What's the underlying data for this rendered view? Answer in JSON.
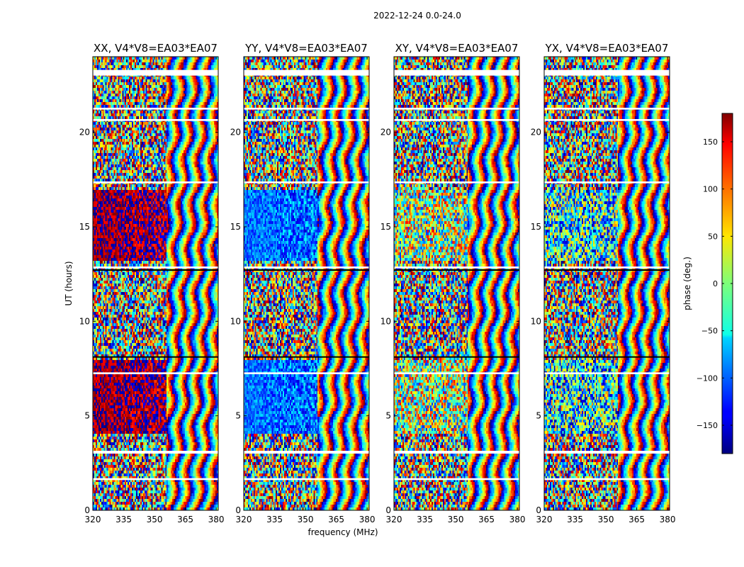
{
  "suptitle": "2022-12-24 0.0-24.0",
  "xlabel": "frequency (MHz)",
  "ylabel": "UT (hours)",
  "colorbar": {
    "label": "phase (deg.)",
    "ticks": [
      150,
      100,
      50,
      0,
      -50,
      -100,
      -150
    ],
    "tick_labels": [
      "150",
      "100",
      "50",
      "0",
      "−50",
      "−100",
      "−150"
    ],
    "range": [
      -180,
      180
    ],
    "colormap": "jet"
  },
  "chart_data": {
    "type": "heatmap",
    "title": "2022-12-24 0.0-24.0",
    "xlabel": "frequency (MHz)",
    "ylabel": "UT (hours)",
    "xlim": [
      320,
      381
    ],
    "ylim": [
      0,
      24
    ],
    "xticks": [
      320,
      335,
      350,
      365,
      380
    ],
    "yticks": [
      0,
      5,
      10,
      15,
      20
    ],
    "value_label": "phase (deg.)",
    "value_range": [
      -180,
      180
    ],
    "panels": [
      {
        "name": "XX",
        "title": "XX, V4*V8=EA03*EA07",
        "low_freq_phase_deg": 170
      },
      {
        "name": "YY",
        "title": "YY, V4*V8=EA03*EA07",
        "low_freq_phase_deg": -95
      },
      {
        "name": "XY",
        "title": "XY, V4*V8=EA03*EA07",
        "low_freq_phase_deg": 10
      },
      {
        "name": "YX",
        "title": "YX, V4*V8=EA03*EA07",
        "low_freq_phase_deg": -40
      }
    ],
    "coherent_intervals_ut": [
      [
        4.1,
        8.0
      ],
      [
        13.2,
        17.0
      ]
    ],
    "rfi_fringe_start_mhz": 356,
    "flagged_ut": [
      [
        3.0,
        3.15
      ],
      [
        17.3,
        17.4
      ],
      [
        21.2,
        21.3
      ],
      [
        23.0,
        23.3
      ],
      [
        12.8,
        12.9
      ],
      [
        20.6,
        20.7
      ],
      [
        1.6,
        1.7
      ],
      [
        7.2,
        7.3
      ]
    ]
  }
}
